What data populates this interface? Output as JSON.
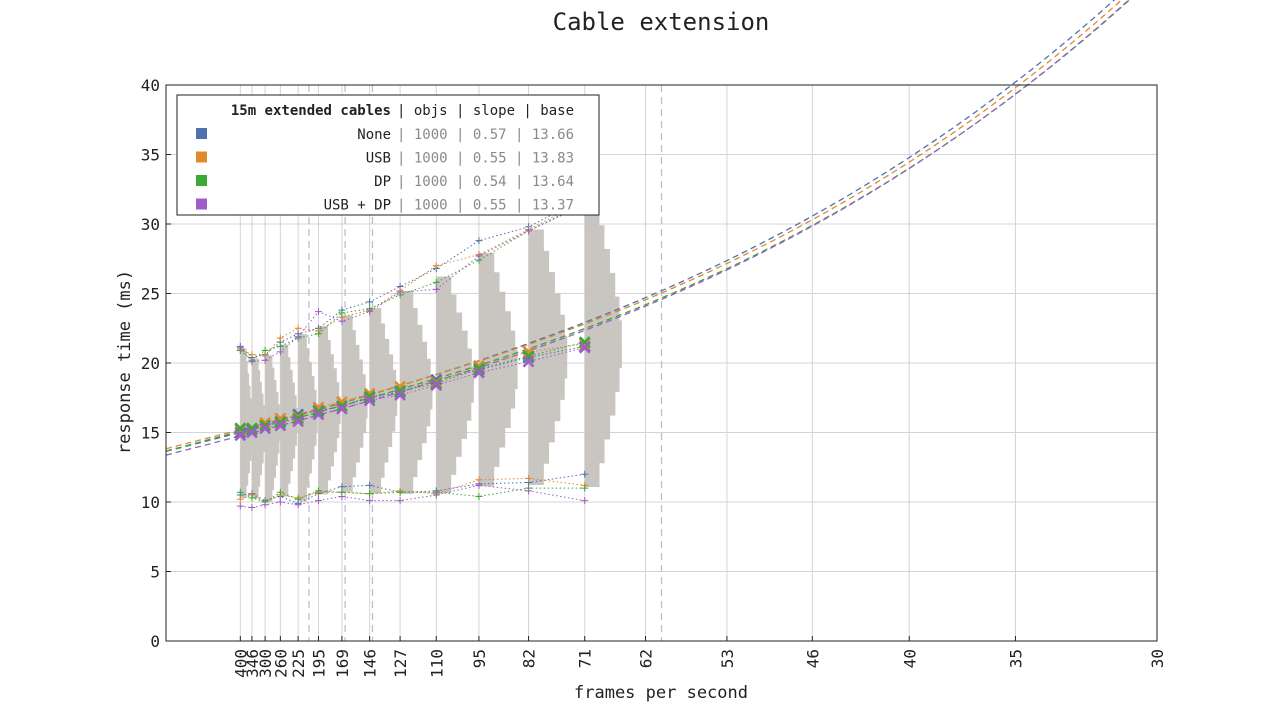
{
  "chart_data": {
    "type": "line",
    "title": "Cable extension",
    "xlabel": "frames per second",
    "ylabel": "response time (ms)",
    "ylim": [
      0,
      40
    ],
    "yticks": [
      0,
      5,
      10,
      15,
      20,
      25,
      30,
      35,
      40
    ],
    "x_tick_labels": [
      "400",
      "346",
      "300",
      "260",
      "225",
      "195",
      "169",
      "146",
      "127",
      "110",
      "95",
      "82",
      "71",
      "62",
      "53",
      "46",
      "40",
      "35",
      "30"
    ],
    "x_axis_note": "x axis is frame time in ms (1000 / fps); tick labels show frames per second",
    "x_range_ms": [
      0,
      33.333
    ],
    "grid": true,
    "reference_lines_fps": [
      208,
      166,
      144,
      60
    ],
    "legend": {
      "placement": "top-left",
      "header": "15m extended cables",
      "columns": [
        "objs",
        "slope",
        "base"
      ],
      "rows": [
        {
          "label": "None",
          "objs": "1000",
          "slope": "0.57",
          "base": "13.66",
          "color": "#4c72b0"
        },
        {
          "label": "USB",
          "objs": "1000",
          "slope": "0.55",
          "base": "13.83",
          "color": "#e08a2e"
        },
        {
          "label": "DP",
          "objs": "1000",
          "slope": "0.54",
          "base": "13.64",
          "color": "#3aa935"
        },
        {
          "label": "USB + DP",
          "objs": "1000",
          "slope": "0.55",
          "base": "13.37",
          "color": "#a05cc8"
        }
      ]
    },
    "x_fps": [
      400,
      346,
      300,
      260,
      225,
      195,
      169,
      146,
      127,
      110,
      95,
      82,
      71
    ],
    "series": [
      {
        "name": "None",
        "color": "#4c72b0",
        "median": [
          15.0,
          15.2,
          15.5,
          15.8,
          16.3,
          16.6,
          16.9,
          17.5,
          17.9,
          18.8,
          19.5,
          20.4,
          21.2
        ],
        "upper": [
          21.2,
          20.4,
          20.6,
          21.5,
          22.1,
          22.5,
          23.8,
          24.4,
          25.5,
          26.8,
          28.8,
          29.8,
          31.9
        ],
        "lower": [
          10.5,
          10.6,
          10.1,
          10.4,
          9.9,
          10.6,
          11.1,
          11.2,
          10.7,
          10.8,
          11.3,
          11.4,
          12.0
        ]
      },
      {
        "name": "USB",
        "color": "#e08a2e",
        "median": [
          15.2,
          15.3,
          15.7,
          16.0,
          16.1,
          16.8,
          17.2,
          17.8,
          18.3,
          18.6,
          19.8,
          20.8,
          21.4
        ],
        "upper": [
          21.0,
          20.6,
          20.5,
          21.8,
          22.5,
          22.3,
          23.3,
          23.8,
          25.2,
          27.0,
          27.8,
          29.6,
          31.7
        ],
        "lower": [
          10.2,
          10.5,
          10.0,
          10.5,
          10.3,
          10.7,
          10.7,
          10.6,
          10.8,
          10.6,
          11.6,
          11.7,
          11.2
        ]
      },
      {
        "name": "DP",
        "color": "#3aa935",
        "median": [
          15.3,
          15.3,
          15.5,
          15.7,
          16.0,
          16.5,
          16.9,
          17.6,
          18.0,
          18.5,
          19.6,
          20.5,
          21.5
        ],
        "upper": [
          20.9,
          20.2,
          20.9,
          21.2,
          21.8,
          22.1,
          23.6,
          23.9,
          24.9,
          25.8,
          27.4,
          29.5,
          31.5
        ],
        "lower": [
          10.7,
          10.3,
          10.0,
          10.7,
          10.2,
          10.8,
          10.7,
          10.6,
          10.7,
          10.7,
          10.4,
          11.0,
          11.0
        ]
      },
      {
        "name": "USB + DP",
        "color": "#a05cc8",
        "median": [
          14.8,
          15.0,
          15.3,
          15.5,
          15.8,
          16.3,
          16.7,
          17.3,
          17.7,
          18.4,
          19.3,
          20.1,
          21.1
        ],
        "upper": [
          21.1,
          20.1,
          20.2,
          20.8,
          21.9,
          23.7,
          23.0,
          23.7,
          25.1,
          25.3,
          27.7,
          29.5,
          31.4
        ],
        "lower": [
          9.7,
          9.6,
          9.8,
          10.0,
          9.8,
          10.1,
          10.4,
          10.1,
          10.1,
          10.5,
          11.2,
          10.8,
          10.1
        ]
      }
    ],
    "fits": [
      {
        "name": "None",
        "slope": 0.57,
        "base": 13.66,
        "color": "#4c72b0"
      },
      {
        "name": "USB",
        "slope": 0.55,
        "base": 13.83,
        "color": "#e08a2e"
      },
      {
        "name": "DP",
        "slope": 0.54,
        "base": 13.64,
        "color": "#3aa935"
      },
      {
        "name": "USB + DP",
        "slope": 0.55,
        "base": 13.37,
        "color": "#a05cc8"
      }
    ],
    "fit_curvature": 0.00044,
    "distribution_color": "#c6c2bd"
  }
}
